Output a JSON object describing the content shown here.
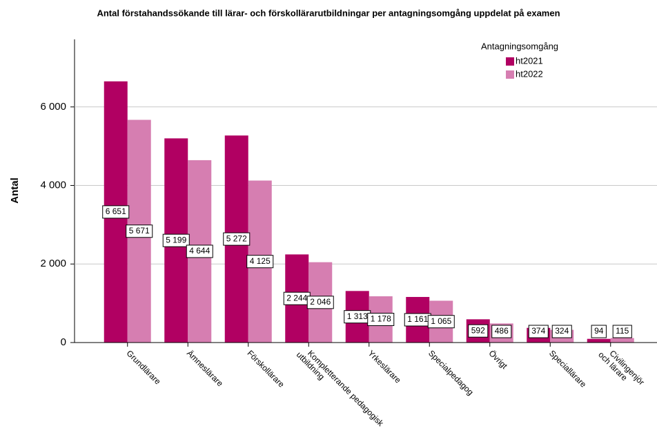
{
  "chart_data": {
    "type": "bar",
    "title": "Antal förstahandssökande till lärar- och förskollärarutbildningar per antagningsomgång uppdelat på examen",
    "y_label": "Antal",
    "legend_title": "Antagningsomgång",
    "legend_position": "upper right",
    "grid": true,
    "categories": [
      "Grundlärare",
      "Ämneslärare",
      "Förskollärare",
      "Kompletterande pedagogisk\nutbildning",
      "Yrkeslärare",
      "Specialpedagog",
      "Övrigt",
      "Speciallärare",
      "Civilingenjör\noch lärare"
    ],
    "series": [
      {
        "name": "ht2021",
        "color": "#b10062",
        "values": [
          6651,
          5199,
          5272,
          2244,
          1313,
          1161,
          592,
          374,
          94
        ],
        "value_labels": [
          "6 651",
          "5 199",
          "5 272",
          "2 244",
          "1 313",
          "1 161",
          "592",
          "374",
          "94"
        ]
      },
      {
        "name": "ht2022",
        "color": "#d67eb1",
        "values": [
          5671,
          4644,
          4125,
          2046,
          1178,
          1065,
          486,
          324,
          115
        ],
        "value_labels": [
          "5 671",
          "4 644",
          "4 125",
          "2 046",
          "1 178",
          "1 065",
          "486",
          "324",
          "115"
        ]
      }
    ],
    "ylim": [
      0,
      7720
    ],
    "yticks": [
      0,
      {
        "value": 2000,
        "label": "2 000"
      },
      {
        "value": 4000,
        "label": "4 000"
      },
      {
        "value": 6000,
        "label": "6 000"
      }
    ]
  }
}
